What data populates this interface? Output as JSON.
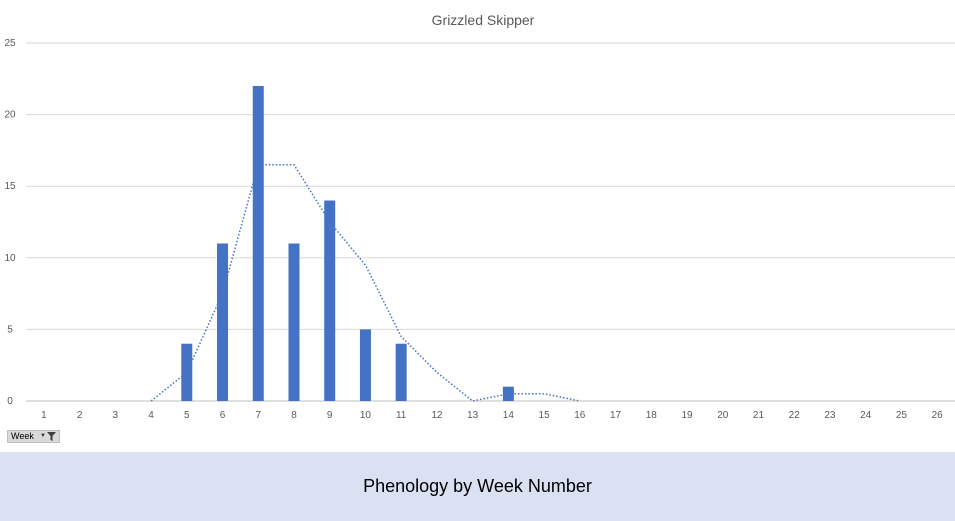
{
  "chart_data": {
    "type": "bar",
    "title": "Grizzled Skipper",
    "xlabel": "",
    "ylabel": "",
    "categories": [
      "1",
      "2",
      "3",
      "4",
      "5",
      "6",
      "7",
      "8",
      "9",
      "10",
      "11",
      "12",
      "13",
      "14",
      "15",
      "16",
      "17",
      "18",
      "19",
      "20",
      "21",
      "22",
      "23",
      "24",
      "25",
      "26"
    ],
    "values": [
      0,
      0,
      0,
      0,
      4,
      11,
      22,
      11,
      14,
      5,
      4,
      0,
      0,
      1,
      0,
      0,
      0,
      0,
      0,
      0,
      0,
      0,
      0,
      0,
      0,
      0
    ],
    "trendline": {
      "type": "moving-average",
      "period": 2,
      "style": "dotted",
      "points": [
        {
          "x": "4",
          "y": 0
        },
        {
          "x": "5",
          "y": 2
        },
        {
          "x": "6",
          "y": 7.5
        },
        {
          "x": "7",
          "y": 16.5
        },
        {
          "x": "8",
          "y": 16.5
        },
        {
          "x": "9",
          "y": 12.5
        },
        {
          "x": "10",
          "y": 9.5
        },
        {
          "x": "11",
          "y": 4.5
        },
        {
          "x": "12",
          "y": 2
        },
        {
          "x": "13",
          "y": 0
        },
        {
          "x": "14",
          "y": 0.5
        },
        {
          "x": "15",
          "y": 0.5
        },
        {
          "x": "16",
          "y": 0
        }
      ]
    },
    "ylim": [
      0,
      25
    ],
    "yticks": [
      0,
      5,
      10,
      15,
      20,
      25
    ],
    "grid": true,
    "legend": "none",
    "colors": {
      "bar": "#4472c4",
      "trendline": "#4472c4",
      "grid": "#d9d9d9"
    }
  },
  "filter": {
    "label": "Week",
    "icon": "filter-dropdown-icon"
  },
  "footer": {
    "caption": "Phenology by Week Number",
    "background": "#d9e1f2"
  }
}
